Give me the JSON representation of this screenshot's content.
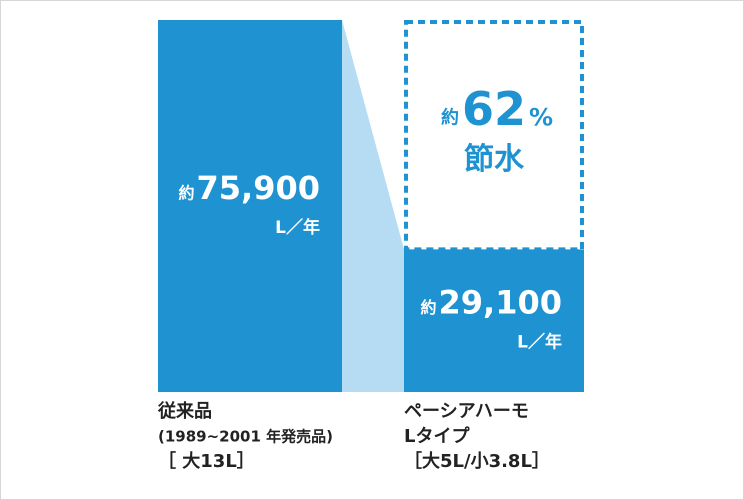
{
  "chart_data": {
    "type": "bar",
    "categories": [
      [
        "従来品",
        "(1989~2001 年発売品)",
        "［ 大13L］"
      ],
      [
        "ペーシアハーモ",
        "Lタイプ",
        "［大5L/小3.8L］"
      ]
    ],
    "values": [
      75900,
      29100
    ],
    "value_labels": [
      "75,900",
      "29,100"
    ],
    "value_prefix": "約",
    "unit": "L／年",
    "color": "#1f93d2",
    "connector_color": "#b5dcf2",
    "annotation": {
      "prefix": "約",
      "value": 62,
      "unit": "%",
      "text": "節水"
    }
  }
}
